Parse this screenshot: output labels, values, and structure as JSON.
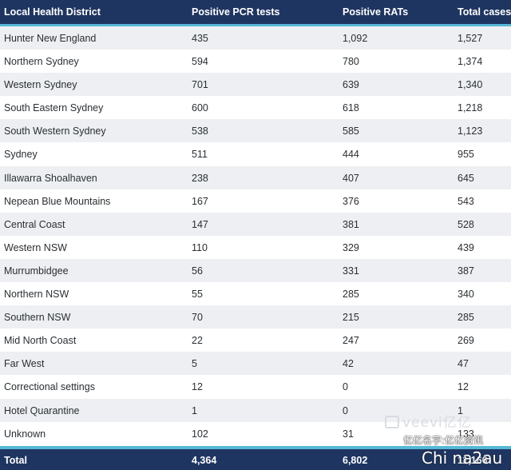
{
  "header": {
    "col_district": "Local Health District",
    "col_pcr": "Positive PCR tests",
    "col_rat": "Positive RATs",
    "col_total": "Total cases"
  },
  "rows": [
    {
      "district": "Hunter New England",
      "pcr": "435",
      "rat": "1,092",
      "total": "1,527"
    },
    {
      "district": "Northern Sydney",
      "pcr": "594",
      "rat": "780",
      "total": "1,374"
    },
    {
      "district": "Western Sydney",
      "pcr": "701",
      "rat": "639",
      "total": "1,340"
    },
    {
      "district": "South Eastern Sydney",
      "pcr": "600",
      "rat": "618",
      "total": "1,218"
    },
    {
      "district": "South Western Sydney",
      "pcr": "538",
      "rat": "585",
      "total": "1,123"
    },
    {
      "district": "Sydney",
      "pcr": "511",
      "rat": "444",
      "total": "955"
    },
    {
      "district": "Illawarra Shoalhaven",
      "pcr": "238",
      "rat": "407",
      "total": "645"
    },
    {
      "district": "Nepean Blue Mountains",
      "pcr": "167",
      "rat": "376",
      "total": "543"
    },
    {
      "district": "Central Coast",
      "pcr": "147",
      "rat": "381",
      "total": "528"
    },
    {
      "district": "Western NSW",
      "pcr": "110",
      "rat": "329",
      "total": "439"
    },
    {
      "district": "Murrumbidgee",
      "pcr": "56",
      "rat": "331",
      "total": "387"
    },
    {
      "district": "Northern NSW",
      "pcr": "55",
      "rat": "285",
      "total": "340"
    },
    {
      "district": "Southern NSW",
      "pcr": "70",
      "rat": "215",
      "total": "285"
    },
    {
      "district": "Mid North Coast",
      "pcr": "22",
      "rat": "247",
      "total": "269"
    },
    {
      "district": "Far West",
      "pcr": "5",
      "rat": "42",
      "total": "47"
    },
    {
      "district": "Correctional settings",
      "pcr": "12",
      "rat": "0",
      "total": "12"
    },
    {
      "district": "Hotel Quarantine",
      "pcr": "1",
      "rat": "0",
      "total": "1"
    },
    {
      "district": "Unknown",
      "pcr": "102",
      "rat": "31",
      "total": "133"
    }
  ],
  "footer": {
    "label": "Total",
    "pcr": "4,364",
    "rat": "6,802",
    "total": "11,166"
  },
  "watermarks": {
    "brand": "veevi亿亿",
    "caption": "亿亿名字:亿亿资讯",
    "overlay": "Chi na2au"
  },
  "colors": {
    "header_bg": "#1f3561",
    "accent": "#55b8d6",
    "alt_row": "#edeff2"
  }
}
